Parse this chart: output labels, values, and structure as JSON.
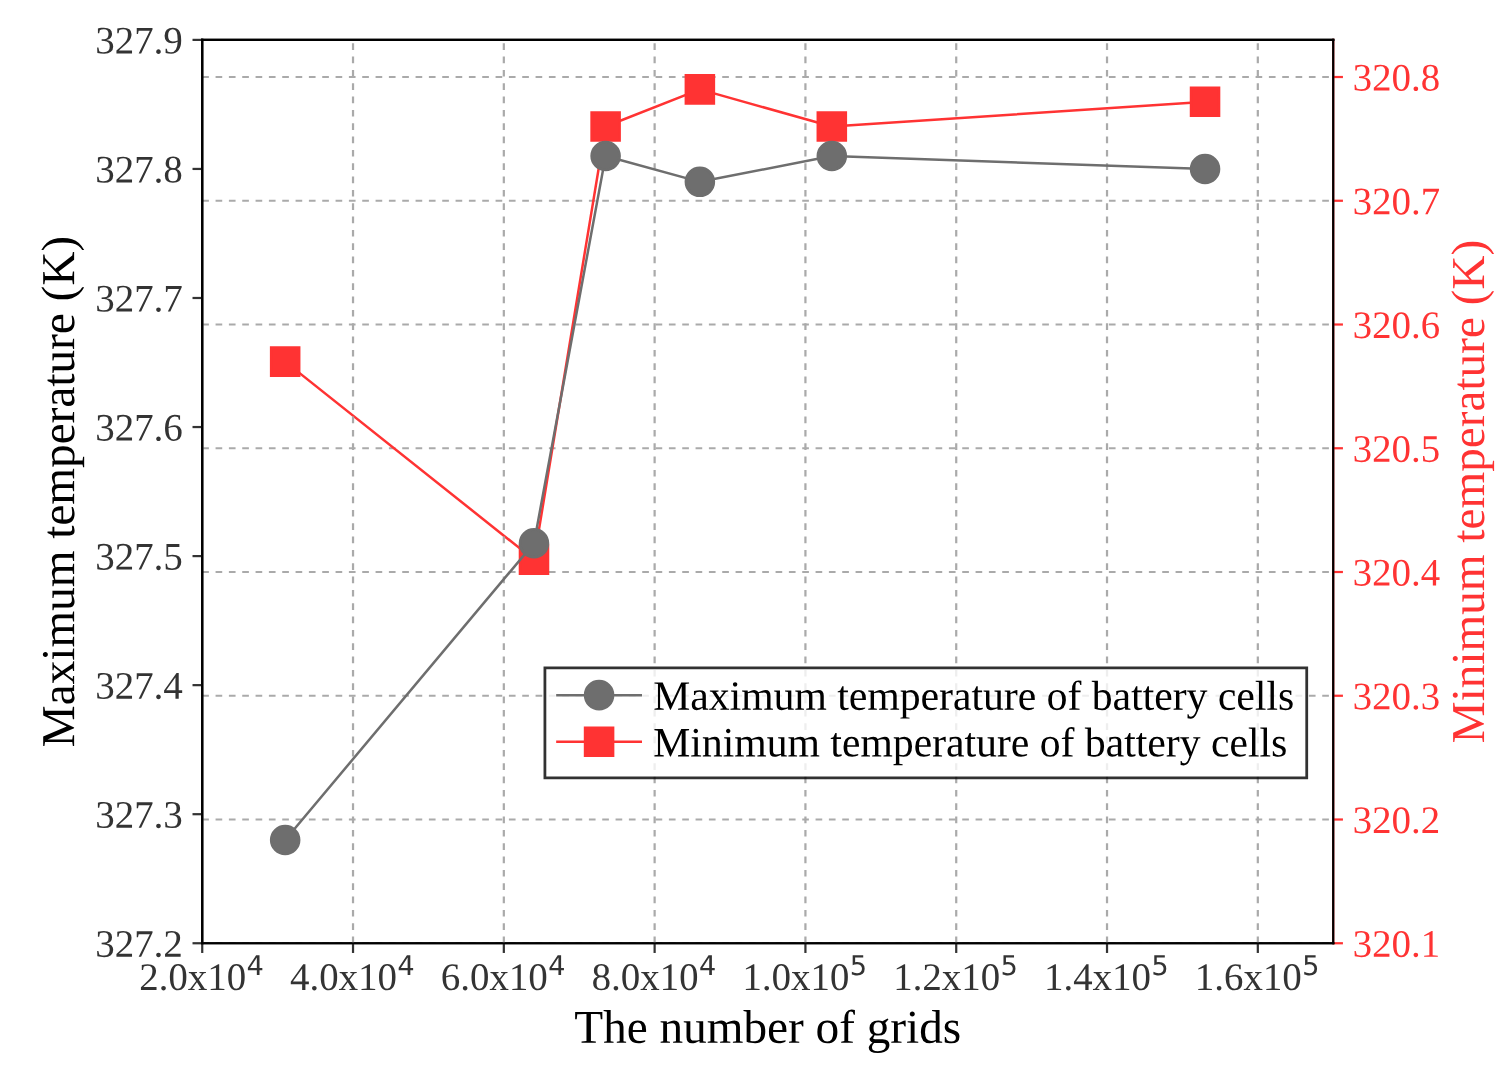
{
  "chart_data": {
    "type": "line",
    "xlabel": "The number of grids",
    "ylabel": "Maximum temperature (K)",
    "y2label": "Minimum temperature (K)",
    "x": [
      31000,
      64000,
      73500,
      86000,
      103500,
      153000
    ],
    "series": [
      {
        "name": "Maximum temperature of battery cells",
        "color": "#6e6e6e",
        "marker": "circle",
        "values": [
          327.28,
          327.51,
          327.81,
          327.79,
          327.81,
          327.8
        ]
      },
      {
        "name": "Minimum temperature of battery cells",
        "color": "#ff3333",
        "marker": "square",
        "axis": "y2",
        "values": [
          320.57,
          320.41,
          320.76,
          320.79,
          320.76,
          320.78
        ]
      }
    ],
    "xlim": [
      20000,
      170000
    ],
    "xticks": [
      {
        "value": 20000,
        "label": "2.0x10$^{4}$"
      },
      {
        "value": 40000,
        "label": "4.0x10$^{4}$"
      },
      {
        "value": 60000,
        "label": "6.0x10$^{4}$"
      },
      {
        "value": 80000,
        "label": "8.0x10$^{4}$"
      },
      {
        "value": 100000,
        "label": "1.0x10$^{5}$"
      },
      {
        "value": 120000,
        "label": "1.2x10$^{5}$"
      },
      {
        "value": 140000,
        "label": "1.4x10$^{5}$"
      },
      {
        "value": 160000,
        "label": "1.6x10$^{5}$"
      }
    ],
    "ylim": [
      327.2,
      327.9
    ],
    "yticks": [
      327.2,
      327.3,
      327.4,
      327.5,
      327.6,
      327.7,
      327.8,
      327.9
    ],
    "y2lim": [
      320.1,
      320.83
    ],
    "y2ticks": [
      320.1,
      320.2,
      320.3,
      320.4,
      320.5,
      320.6,
      320.7,
      320.8
    ],
    "grid": true,
    "legend": "lower right",
    "line_style": "solid"
  }
}
